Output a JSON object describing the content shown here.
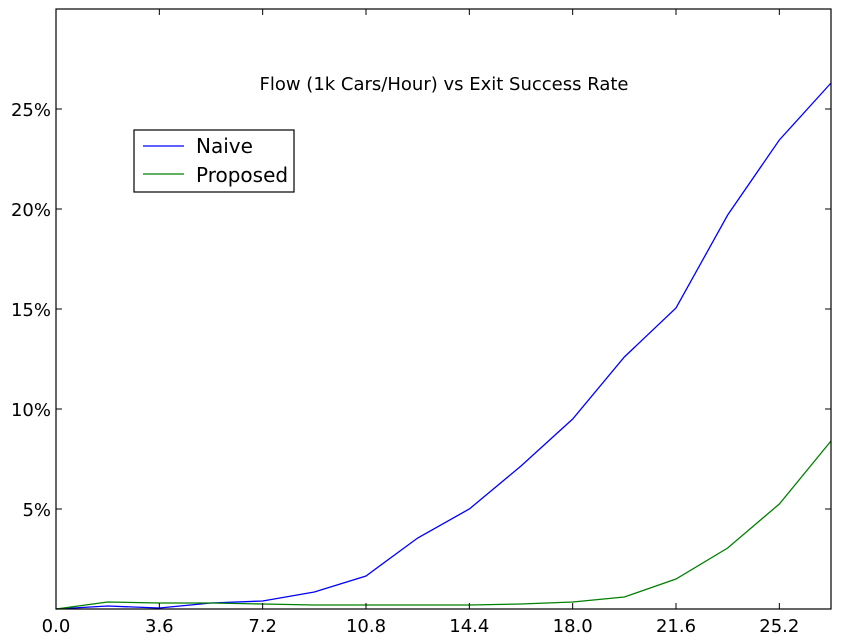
{
  "chart_data": {
    "type": "line",
    "title": "Flow (1k Cars/Hour) vs Exit Success Rate",
    "xlabel": "",
    "ylabel": "",
    "xlim": [
      0,
      27
    ],
    "ylim": [
      0,
      30
    ],
    "x_ticks": [
      "0.0",
      "3.6",
      "7.2",
      "10.8",
      "14.4",
      "18.0",
      "21.6",
      "25.2"
    ],
    "y_ticks": [
      "5%",
      "10%",
      "15%",
      "20%",
      "25%"
    ],
    "grid": false,
    "legend_position": "upper-left",
    "x": [
      0,
      1.8,
      3.6,
      5.4,
      7.2,
      9.0,
      10.8,
      12.6,
      14.4,
      16.2,
      18.0,
      19.8,
      21.6,
      23.4,
      25.2,
      27.0
    ],
    "series": [
      {
        "name": "Naive",
        "color": "#0000ff",
        "values": [
          0.0,
          0.15,
          0.05,
          0.3,
          0.4,
          0.85,
          1.65,
          3.55,
          5.0,
          7.15,
          9.5,
          12.6,
          15.05,
          19.7,
          23.45,
          26.3
        ]
      },
      {
        "name": "Proposed",
        "color": "#008000",
        "values": [
          0.0,
          0.35,
          0.3,
          0.3,
          0.25,
          0.2,
          0.2,
          0.2,
          0.2,
          0.25,
          0.35,
          0.6,
          1.5,
          3.05,
          5.25,
          8.4
        ]
      }
    ]
  }
}
